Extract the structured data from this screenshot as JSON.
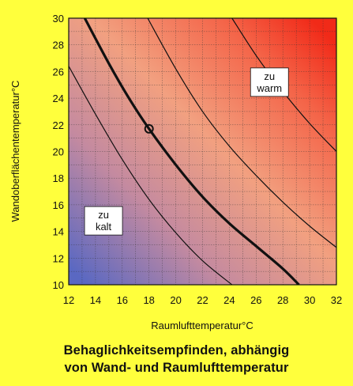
{
  "caption": {
    "line1": "Behaglichkeitsempfinden, abhängig",
    "line2": "von Wand- und Raumlufttemperatur"
  },
  "chart_data": {
    "type": "line",
    "title": "",
    "xlabel": "Raumlufttemperatur°C",
    "ylabel": "Wandoberflächentemperatur°C",
    "xlim": [
      12,
      32
    ],
    "ylim": [
      10,
      30
    ],
    "xticks": [
      12,
      14,
      16,
      18,
      20,
      22,
      24,
      26,
      28,
      30,
      32
    ],
    "yticks": [
      10,
      12,
      14,
      16,
      18,
      20,
      22,
      24,
      26,
      28,
      30
    ],
    "grid": true,
    "background": "gradient from blue (cold, lower-left) through salmon to red (warm, upper-right)",
    "series": [
      {
        "style": "thin",
        "x": [
          12.0,
          14.0,
          16.0,
          18.0,
          20.0,
          22.0,
          24.2
        ],
        "y": [
          26.4,
          22.8,
          19.4,
          16.4,
          13.9,
          11.8,
          10.0
        ]
      },
      {
        "style": "thick",
        "x": [
          13.2,
          15.0,
          16.5,
          18.0,
          20.0,
          22.0,
          24.0,
          26.0,
          28.0,
          29.2
        ],
        "y": [
          30.0,
          26.6,
          24.0,
          21.7,
          19.0,
          16.6,
          14.6,
          12.9,
          11.2,
          10.0
        ]
      },
      {
        "style": "thin",
        "x": [
          17.9,
          20.0,
          22.0,
          24.0,
          26.0,
          28.0,
          30.0,
          32.0
        ],
        "y": [
          30.0,
          26.2,
          23.0,
          20.4,
          18.2,
          16.2,
          14.4,
          12.8
        ]
      },
      {
        "style": "thin",
        "x": [
          24.2,
          26.0,
          28.0,
          30.0,
          32.0
        ],
        "y": [
          30.0,
          27.2,
          24.5,
          22.1,
          20.0
        ]
      }
    ],
    "marker": {
      "x": 18.0,
      "y": 21.7,
      "shape": "open-circle"
    },
    "annotations": [
      {
        "lines": [
          "zu",
          "warm"
        ],
        "x": 27.0,
        "y": 25.2
      },
      {
        "lines": [
          "zu",
          "kalt"
        ],
        "x": 14.6,
        "y": 14.8
      }
    ],
    "colors": {
      "cold": "#5a68c2",
      "neutral": "#f2a080",
      "warm": "#f12a18",
      "grid": "#333333",
      "curve": "#111111"
    }
  }
}
